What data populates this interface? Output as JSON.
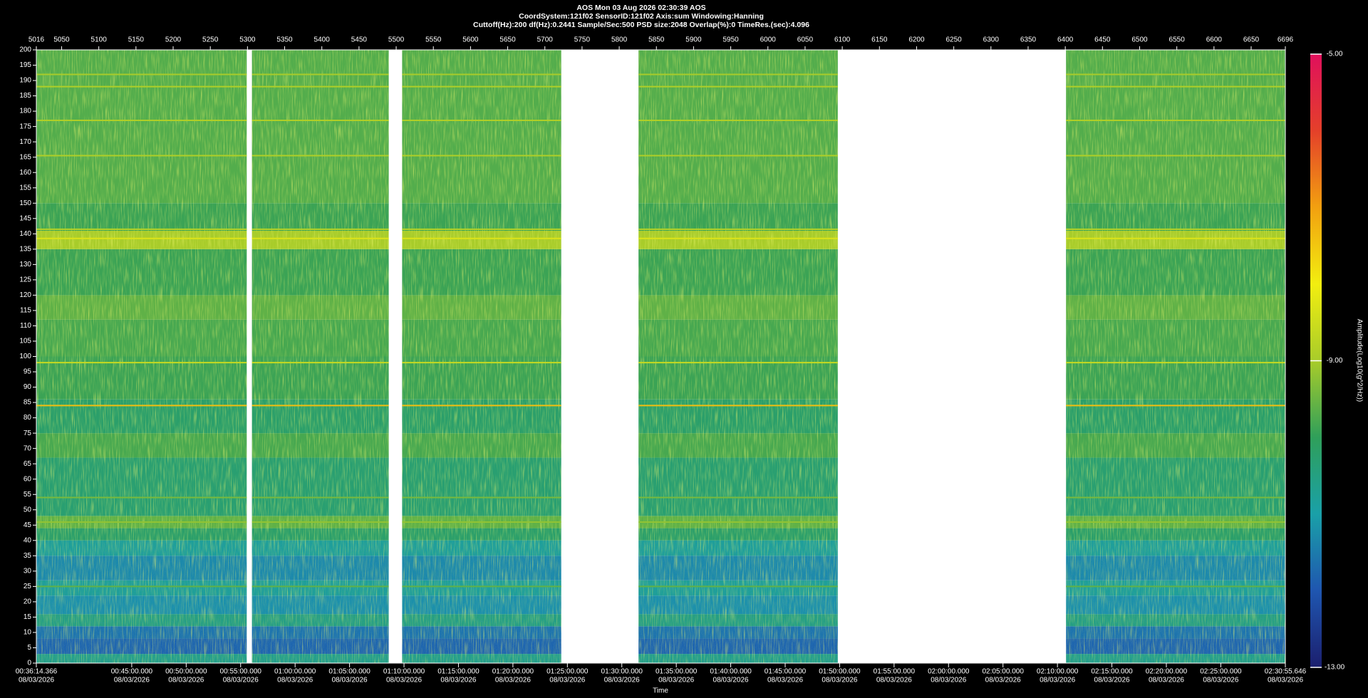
{
  "chart_data": {
    "type": "spectrogram",
    "title": [
      "AOS  Mon 03 Aug 2026 02:30:39  AOS",
      "CoordSystem:121f02   SensorID:121f02   Axis:sum   Windowing:Hanning",
      "Cuttoff(Hz):200     df(Hz):0.2441     Sample/Sec:500     PSD size:2048     Overlap(%):0     TimeRes.(sec):4.096"
    ],
    "xlabel": "Time",
    "colorbar_label": "Amplitude(Log10(g^2/Hz))",
    "xlim": [
      5016,
      6696
    ],
    "xticks": [
      5016,
      5050,
      5100,
      5150,
      5200,
      5250,
      5300,
      5350,
      5400,
      5450,
      5500,
      5550,
      5600,
      5650,
      5700,
      5750,
      5800,
      5850,
      5900,
      5950,
      6000,
      6050,
      6100,
      6150,
      6200,
      6250,
      6300,
      6350,
      6400,
      6450,
      6500,
      6550,
      6600,
      6650,
      6696
    ],
    "time_ticks": [
      {
        "value": 5016,
        "label": "00:36:14.366",
        "date": "08/03/2026"
      },
      {
        "value": 5144.33,
        "label": "00:45:00.000",
        "date": "08/03/2026"
      },
      {
        "value": 5217.57,
        "label": "00:50:00.000",
        "date": "08/03/2026"
      },
      {
        "value": 5290.81,
        "label": "00:55:00.000",
        "date": "08/03/2026"
      },
      {
        "value": 5364.06,
        "label": "01:00:00.000",
        "date": "08/03/2026"
      },
      {
        "value": 5437.3,
        "label": "01:05:00.000",
        "date": "08/03/2026"
      },
      {
        "value": 5510.54,
        "label": "01:10:00.000",
        "date": "08/03/2026"
      },
      {
        "value": 5583.78,
        "label": "01:15:00.000",
        "date": "08/03/2026"
      },
      {
        "value": 5657.03,
        "label": "01:20:00.000",
        "date": "08/03/2026"
      },
      {
        "value": 5730.27,
        "label": "01:25:00.000",
        "date": "08/03/2026"
      },
      {
        "value": 5803.51,
        "label": "01:30:00.000",
        "date": "08/03/2026"
      },
      {
        "value": 5876.75,
        "label": "01:35:00.000",
        "date": "08/03/2026"
      },
      {
        "value": 5949.99,
        "label": "01:40:00.000",
        "date": "08/03/2026"
      },
      {
        "value": 6023.24,
        "label": "01:45:00.000",
        "date": "08/03/2026"
      },
      {
        "value": 6096.48,
        "label": "01:50:00.000",
        "date": "08/03/2026"
      },
      {
        "value": 6169.72,
        "label": "01:55:00.000",
        "date": "08/03/2026"
      },
      {
        "value": 6242.96,
        "label": "02:00:00.000",
        "date": "08/03/2026"
      },
      {
        "value": 6316.21,
        "label": "02:05:00.000",
        "date": "08/03/2026"
      },
      {
        "value": 6389.45,
        "label": "02:10:00.000",
        "date": "08/03/2026"
      },
      {
        "value": 6462.69,
        "label": "02:15:00.000",
        "date": "08/03/2026"
      },
      {
        "value": 6535.93,
        "label": "02:20:00.000",
        "date": "08/03/2026"
      },
      {
        "value": 6609.18,
        "label": "02:25:00.000",
        "date": "08/03/2026"
      },
      {
        "value": 6696,
        "label": "02:30:55.646",
        "date": "08/03/2026"
      }
    ],
    "ylim": [
      0,
      200
    ],
    "yticks": [
      0,
      5,
      10,
      15,
      20,
      25,
      30,
      35,
      40,
      45,
      50,
      55,
      60,
      65,
      70,
      75,
      80,
      85,
      90,
      95,
      100,
      105,
      110,
      115,
      120,
      125,
      130,
      135,
      140,
      145,
      150,
      155,
      160,
      165,
      170,
      175,
      180,
      185,
      190,
      195,
      200
    ],
    "zlim": [
      -13,
      -5
    ],
    "zticks": [
      {
        "value": -5,
        "label": "-5.00"
      },
      {
        "value": -9,
        "label": "-9.00"
      },
      {
        "value": -13,
        "label": "-13.00"
      }
    ],
    "colormap": {
      "values": [
        -13,
        -12,
        -11,
        -10,
        -9,
        -8,
        -7,
        -6,
        -5
      ],
      "colors": [
        "#1b1f6e",
        "#1f56b0",
        "#1aa0a8",
        "#2f9f5a",
        "#a8cc2a",
        "#f2ee10",
        "#f2a010",
        "#e4402a",
        "#e0105c"
      ]
    },
    "segments": [
      {
        "start": 5016,
        "end": 5299
      },
      {
        "start": 5306,
        "end": 5490
      },
      {
        "start": 5508,
        "end": 5722
      },
      {
        "start": 5826,
        "end": 6094
      },
      {
        "start": 6401,
        "end": 6696
      }
    ],
    "bands": [
      {
        "hz": [
          0,
          3
        ],
        "amplitude": -10.6
      },
      {
        "hz": [
          3,
          8
        ],
        "amplitude": -11.8
      },
      {
        "hz": [
          8,
          12
        ],
        "amplitude": -11.6
      },
      {
        "hz": [
          12,
          16
        ],
        "amplitude": -10.5
      },
      {
        "hz": [
          16,
          22
        ],
        "amplitude": -11.2
      },
      {
        "hz": [
          22,
          27
        ],
        "amplitude": -10.8
      },
      {
        "hz": [
          27,
          35
        ],
        "amplitude": -11.3
      },
      {
        "hz": [
          35,
          40
        ],
        "amplitude": -10.8
      },
      {
        "hz": [
          40,
          44
        ],
        "amplitude": -10.2
      },
      {
        "hz": [
          44,
          48
        ],
        "amplitude": -9.6
      },
      {
        "hz": [
          48,
          67
        ],
        "amplitude": -10.3
      },
      {
        "hz": [
          67,
          75
        ],
        "amplitude": -9.8
      },
      {
        "hz": [
          75,
          86
        ],
        "amplitude": -10.2
      },
      {
        "hz": [
          86,
          100
        ],
        "amplitude": -9.9
      },
      {
        "hz": [
          100,
          112
        ],
        "amplitude": -9.8
      },
      {
        "hz": [
          112,
          120
        ],
        "amplitude": -9.6
      },
      {
        "hz": [
          120,
          135
        ],
        "amplitude": -9.9
      },
      {
        "hz": [
          135,
          141
        ],
        "amplitude": -9.0
      },
      {
        "hz": [
          141,
          150
        ],
        "amplitude": -9.9
      },
      {
        "hz": [
          150,
          200
        ],
        "amplitude": -9.7
      }
    ],
    "lines": [
      {
        "hz": 84,
        "amplitude": -7.4
      },
      {
        "hz": 98,
        "amplitude": -8.6
      },
      {
        "hz": 138.5,
        "amplitude": -8.3
      },
      {
        "hz": 141.5,
        "amplitude": -8.8
      },
      {
        "hz": 165.5,
        "amplitude": -8.9
      },
      {
        "hz": 177,
        "amplitude": -8.9
      },
      {
        "hz": 188,
        "amplitude": -8.9
      },
      {
        "hz": 192,
        "amplitude": -9.0
      },
      {
        "hz": 54,
        "amplitude": -9.4
      },
      {
        "hz": 46,
        "amplitude": -9.2
      },
      {
        "hz": 25,
        "amplitude": -9.6
      }
    ]
  }
}
